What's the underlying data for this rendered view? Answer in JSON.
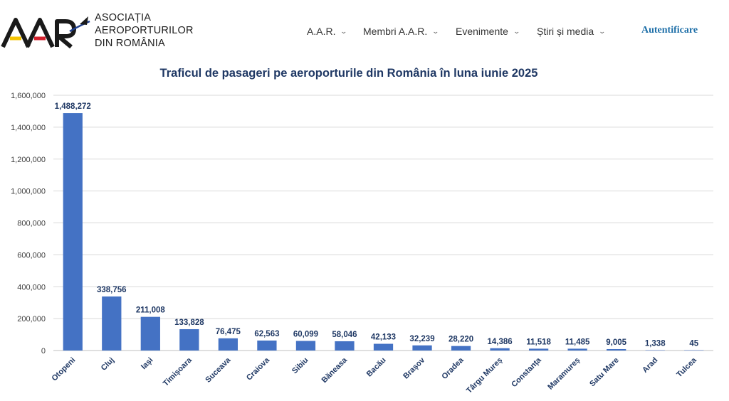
{
  "header": {
    "logo_mark": "AAR",
    "logo_lines": [
      "ASOCIAȚIA",
      "AEROPORTURILOR",
      "DIN ROMÂNIA"
    ],
    "nav": [
      {
        "label": "A.A.R.",
        "icon": "chevron-down-icon"
      },
      {
        "label": "Membri A.A.R.",
        "icon": "chevron-down-icon"
      },
      {
        "label": "Evenimente",
        "icon": "chevron-down-icon"
      },
      {
        "label": "Știri și media",
        "icon": "chevron-down-icon"
      }
    ],
    "login_label": "Autentificare"
  },
  "colors": {
    "bar": "#4472c4",
    "title": "#1f3864",
    "data_label": "#1f3864",
    "tick_label": "#404040",
    "grid": "#d9d9d9",
    "login": "#1e6fa8",
    "logo_blue": "#1f3f8f",
    "logo_yellow": "#f5c400",
    "logo_red": "#d4202c"
  },
  "chart_data": {
    "type": "bar",
    "title": "Traficul de pasageri pe aeroporturile din România în luna iunie 2025",
    "xlabel": "",
    "ylabel": "",
    "ylim": [
      0,
      1600000
    ],
    "yticks": [
      0,
      200000,
      400000,
      600000,
      800000,
      1000000,
      1200000,
      1400000,
      1600000
    ],
    "ytick_labels": [
      "0",
      "200,000",
      "400,000",
      "600,000",
      "800,000",
      "1,000,000",
      "1,200,000",
      "1,400,000",
      "1,600,000"
    ],
    "grid": true,
    "legend": "none",
    "categories": [
      "Otopeni",
      "Cluj",
      "Iași",
      "Timișoara",
      "Suceava",
      "Craiova",
      "Sibiu",
      "Băneasa",
      "Bacău",
      "Brașov",
      "Oradea",
      "Târgu Mureș",
      "Constanța",
      "Maramureș",
      "Satu Mare",
      "Arad",
      "Tulcea"
    ],
    "values": [
      1488272,
      338756,
      211008,
      133828,
      76475,
      62563,
      60099,
      58046,
      42133,
      32239,
      28220,
      14386,
      11518,
      11485,
      9005,
      1338,
      45
    ],
    "value_labels": [
      "1,488,272",
      "338,756",
      "211,008",
      "133,828",
      "76,475",
      "62,563",
      "60,099",
      "58,046",
      "42,133",
      "32,239",
      "28,220",
      "14,386",
      "11,518",
      "11,485",
      "9,005",
      "1,338",
      "45"
    ]
  }
}
